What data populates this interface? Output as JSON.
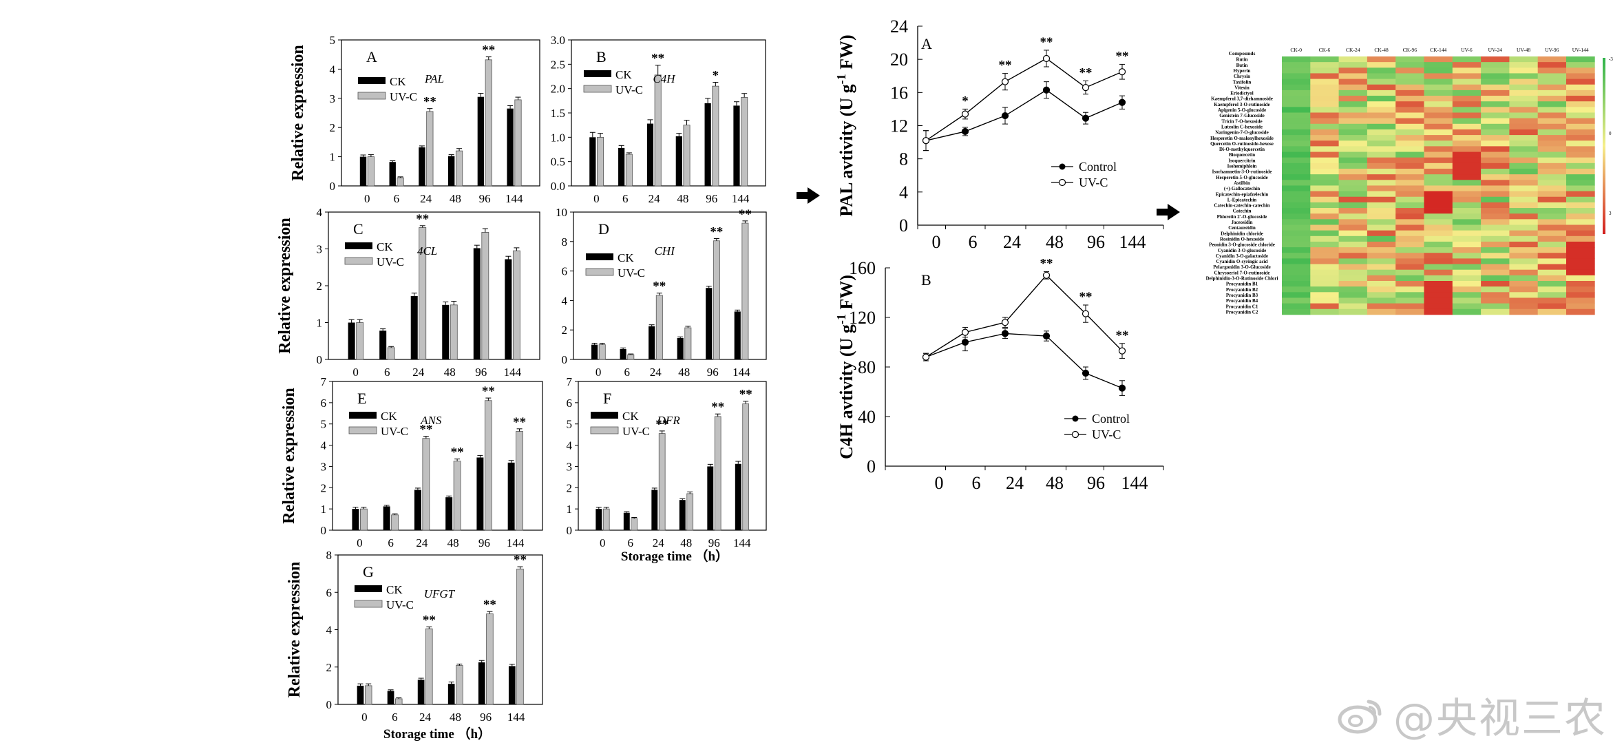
{
  "bar_panels": [
    {
      "letter": "A",
      "gene": "PAL",
      "ylabel": "Relative expression",
      "ymax": 5,
      "ystep": 1,
      "decimals": 0,
      "ck": [
        1.0,
        0.82,
        1.32,
        1.02,
        3.05,
        2.65
      ],
      "uvc": [
        1.0,
        0.28,
        2.55,
        1.2,
        4.32,
        2.95
      ],
      "ck_err": [
        0.06,
        0.04,
        0.05,
        0.05,
        0.12,
        0.1
      ],
      "uvc_err": [
        0.07,
        0.03,
        0.1,
        0.08,
        0.1,
        0.09
      ],
      "stars": [
        "",
        "",
        "**",
        "",
        "**",
        ""
      ]
    },
    {
      "letter": "B",
      "gene": "C4H",
      "ylabel": "",
      "ymax": 3,
      "ystep": 0.5,
      "decimals": 1,
      "ck": [
        1.0,
        0.78,
        1.28,
        1.02,
        1.7,
        1.65
      ],
      "uvc": [
        1.0,
        0.65,
        2.28,
        1.25,
        2.05,
        1.82
      ],
      "ck_err": [
        0.1,
        0.05,
        0.08,
        0.06,
        0.1,
        0.08
      ],
      "uvc_err": [
        0.08,
        0.03,
        0.2,
        0.1,
        0.08,
        0.08
      ],
      "stars": [
        "",
        "",
        "**",
        "",
        "*",
        ""
      ]
    },
    {
      "letter": "C",
      "gene": "4CL",
      "ylabel": "Relative expression",
      "ymax": 4,
      "ystep": 1,
      "decimals": 0,
      "ck": [
        1.0,
        0.78,
        1.72,
        1.48,
        3.02,
        2.72
      ],
      "uvc": [
        1.0,
        0.32,
        3.58,
        1.48,
        3.45,
        2.95
      ],
      "ck_err": [
        0.08,
        0.05,
        0.08,
        0.08,
        0.08,
        0.08
      ],
      "uvc_err": [
        0.08,
        0.03,
        0.05,
        0.1,
        0.1,
        0.08
      ],
      "stars": [
        "",
        "",
        "**",
        "",
        "",
        ""
      ]
    },
    {
      "letter": "D",
      "gene": "CHI",
      "ylabel": "",
      "ymax": 10,
      "ystep": 2,
      "decimals": 0,
      "ck": [
        1.0,
        0.7,
        2.25,
        1.45,
        4.85,
        3.25
      ],
      "uvc": [
        1.0,
        0.32,
        4.35,
        2.15,
        8.05,
        9.25
      ],
      "ck_err": [
        0.1,
        0.08,
        0.1,
        0.08,
        0.12,
        0.1
      ],
      "uvc_err": [
        0.1,
        0.05,
        0.15,
        0.1,
        0.15,
        0.15
      ],
      "stars": [
        "",
        "",
        "**",
        "",
        "**",
        "**"
      ]
    },
    {
      "letter": "E",
      "gene": "ANS",
      "ylabel": "Relative expression",
      "ymax": 7,
      "ystep": 1,
      "decimals": 0,
      "ck": [
        1.0,
        1.12,
        1.9,
        1.55,
        3.42,
        3.18
      ],
      "uvc": [
        1.0,
        0.72,
        4.32,
        3.25,
        6.1,
        4.65
      ],
      "ck_err": [
        0.08,
        0.05,
        0.08,
        0.06,
        0.1,
        0.1
      ],
      "uvc_err": [
        0.08,
        0.05,
        0.1,
        0.1,
        0.12,
        0.12
      ],
      "stars": [
        "",
        "",
        "**",
        "**",
        "**",
        "**"
      ]
    },
    {
      "letter": "F",
      "gene": "DFR",
      "ylabel": "",
      "ymax": 7,
      "ystep": 1,
      "decimals": 0,
      "ck": [
        1.0,
        0.82,
        1.9,
        1.42,
        3.0,
        3.12
      ],
      "uvc": [
        1.0,
        0.55,
        4.55,
        1.72,
        5.35,
        5.95
      ],
      "ck_err": [
        0.08,
        0.05,
        0.08,
        0.06,
        0.1,
        0.12
      ],
      "uvc_err": [
        0.08,
        0.05,
        0.12,
        0.08,
        0.12,
        0.12
      ],
      "stars": [
        "",
        "",
        "**",
        "",
        "**",
        "**"
      ]
    },
    {
      "letter": "G",
      "gene": "UFGT",
      "ylabel": "Relative expression",
      "ymax": 8,
      "ystep": 2,
      "decimals": 0,
      "ck": [
        1.0,
        0.72,
        1.32,
        1.1,
        2.25,
        2.05
      ],
      "uvc": [
        1.0,
        0.3,
        4.05,
        2.08,
        4.85,
        7.25
      ],
      "ck_err": [
        0.1,
        0.06,
        0.08,
        0.1,
        0.1,
        0.1
      ],
      "uvc_err": [
        0.1,
        0.05,
        0.1,
        0.08,
        0.12,
        0.12
      ],
      "stars": [
        "",
        "",
        "**",
        "",
        "**",
        "**"
      ]
    }
  ],
  "bar_categories": [
    "0",
    "6",
    "24",
    "48",
    "96",
    "144"
  ],
  "bar_legend": {
    "ck": "CK",
    "uvc": "UV-C"
  },
  "xlabel": "Storage time （h）",
  "line_panels": [
    {
      "letter": "A",
      "ylabel_main": "PAL avtivity (U g",
      "ylabel_sup": "-1",
      "ylabel_tail": " FW)",
      "ymax": 24,
      "ystep": 4,
      "categories": [
        "0",
        "6",
        "24",
        "48",
        "96",
        "144"
      ],
      "control": [
        10.2,
        11.3,
        13.2,
        16.3,
        12.9,
        14.8
      ],
      "uvc": [
        10.2,
        13.4,
        17.3,
        20.1,
        16.6,
        18.5
      ],
      "control_err": [
        1.2,
        0.5,
        1.0,
        1.0,
        0.7,
        0.8
      ],
      "uvc_err": [
        1.2,
        0.6,
        1.0,
        1.0,
        0.8,
        0.9
      ],
      "stars": [
        "",
        "*",
        "**",
        "**",
        "**",
        "**"
      ]
    },
    {
      "letter": "B",
      "ylabel_main": "C4H avtivity (U g",
      "ylabel_sup": "-1",
      "ylabel_tail": " FW)",
      "ymax": 160,
      "ystep": 40,
      "categories": [
        "0",
        "6",
        "24",
        "48",
        "96",
        "144"
      ],
      "control": [
        88,
        100,
        107,
        105,
        75,
        63
      ],
      "uvc": [
        88,
        108,
        116,
        154,
        123,
        93
      ],
      "control_err": [
        3,
        7,
        4,
        4,
        5,
        6
      ],
      "uvc_err": [
        3,
        4,
        4,
        3,
        7,
        6
      ],
      "stars": [
        "",
        "",
        "",
        "**",
        "**",
        "**"
      ]
    }
  ],
  "line_legend": {
    "control": "Control",
    "uvc": "UV-C"
  },
  "heatmap": {
    "columns": [
      "CK-0",
      "CK-6",
      "CK-24",
      "CK-48",
      "CK-96",
      "CK-144",
      "UV-6",
      "UV-24",
      "UV-48",
      "UV-96",
      "UV-144"
    ],
    "header_label": "Compounds",
    "rows": [
      "Rutin",
      "Butin",
      "Hyperin",
      "Chrysin",
      "Taxifolin",
      "Vitexin",
      "Eriodictyol",
      "Kaempferol 3,7-dirhamnoside",
      "Kaempferol 3-O-rutinoside",
      "Apigenin 5-O-glucoside",
      "Genistein 7-Glucoside",
      "Tricin 7-O-hexoside",
      "Luteolin C-hexoside",
      "Naringenin-7-O-glucoside",
      "Hesperetin O-malonylhexoside",
      "Quercetin O-rutinoside-hexose",
      "Di-O-methylquercetin",
      "Bioquercetin",
      "Isoquercitrin",
      "Isohemiphloin",
      "Isorhamnetin-3-O-rutinoside",
      "Hesperetin 5-O-glucoside",
      "Astilbin",
      "(+)-Gallocatechin",
      "Epicatechin-epiafzelechin",
      "L-Epicatechin",
      "Catechin-catechin-catechin",
      "Catechin",
      "Phloretin 2'-O-glucoside",
      "Jaceosidin",
      "Centaureidin",
      "Delphinidin chloride",
      "Rosinidin O-hexoside",
      "Peonidin 3-O-glucoside chloride",
      "Cyanidin 3-O-glucoside",
      "Cyanidin 3-O-galactoside",
      "Cyanidin O-syringic acid",
      "Pelargonidin 3-O-Glucoside",
      "Chrysoeriol 7-O-rutinoside",
      "Delphinidin-3-O-Rutinoside Chlori",
      "Procyanidin B1",
      "Procyanidin B2",
      "Procyanidin B3",
      "Procyanidin B4",
      "Procyanidin C1",
      "Procyanidin C2"
    ],
    "scale_labels": [
      "-3",
      "0",
      "3"
    ],
    "colors": {
      "low": "#2eb34a",
      "mid": "#f6ef8a",
      "high": "#d21e1e"
    }
  },
  "watermark": "@央视三农",
  "colors": {
    "ck_bar": "#000000",
    "uvc_bar": "#c0c0c0"
  }
}
